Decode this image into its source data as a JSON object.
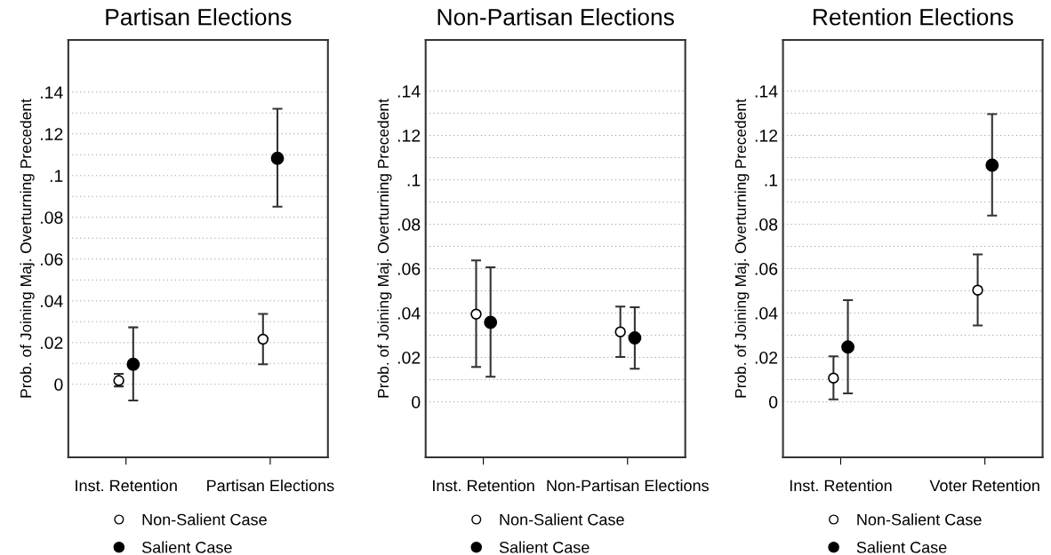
{
  "chart_data": [
    {
      "type": "scatter",
      "title": "Partisan Elections",
      "ylabel": "Prob. of Joining Maj. Overturning Precedent",
      "categories": [
        "Inst. Retention",
        "Partisan Elections"
      ],
      "ylim": [
        -0.035,
        0.165
      ],
      "yticks": [
        0,
        {
          "value": 0.01,
          "label": null
        },
        {
          "value": 0.02,
          "label": ".02"
        },
        {
          "value": 0.03,
          "label": null
        },
        {
          "value": 0.04,
          "label": ".04"
        },
        {
          "value": 0.05,
          "label": null
        },
        {
          "value": 0.06,
          "label": ".06"
        },
        {
          "value": 0.07,
          "label": null
        },
        {
          "value": 0.08,
          "label": ".08"
        },
        {
          "value": 0.09,
          "label": null
        },
        {
          "value": 0.1,
          "label": ".1"
        },
        {
          "value": 0.11,
          "label": null
        },
        {
          "value": 0.12,
          "label": ".12"
        },
        {
          "value": 0.13,
          "label": null
        },
        {
          "value": 0.14,
          "label": ".14"
        }
      ],
      "grid": "y",
      "legend": "bottom",
      "marker": "circle",
      "series": [
        {
          "name": "Non-Salient Case",
          "color": "#ffffff",
          "values": [
            0.0018,
            0.0216
          ],
          "errors": [
            [
              -0.001,
              0.005
            ],
            [
              0.0096,
              0.0337
            ]
          ]
        },
        {
          "name": "Salient Case",
          "color": "#000000",
          "values": [
            0.0096,
            0.1083
          ],
          "errors": [
            [
              -0.0078,
              0.0273
            ],
            [
              0.0851,
              0.132
            ]
          ]
        }
      ]
    },
    {
      "type": "scatter",
      "title": "Non-Partisan Elections",
      "ylabel": "Prob. of Joining Maj. Overturning Precedent",
      "categories": [
        "Inst. Retention",
        "Non-Partisan Elections"
      ],
      "ylim": [
        -0.025,
        0.163
      ],
      "yticks": [
        0,
        {
          "value": 0.01,
          "label": null
        },
        {
          "value": 0.02,
          "label": ".02"
        },
        {
          "value": 0.03,
          "label": null
        },
        {
          "value": 0.04,
          "label": ".04"
        },
        {
          "value": 0.05,
          "label": null
        },
        {
          "value": 0.06,
          "label": ".06"
        },
        {
          "value": 0.07,
          "label": null
        },
        {
          "value": 0.08,
          "label": ".08"
        },
        {
          "value": 0.09,
          "label": null
        },
        {
          "value": 0.1,
          "label": ".1"
        },
        {
          "value": 0.11,
          "label": null
        },
        {
          "value": 0.12,
          "label": ".12"
        },
        {
          "value": 0.13,
          "label": null
        },
        {
          "value": 0.14,
          "label": ".14"
        }
      ],
      "grid": "y",
      "legend": "bottom",
      "marker": "circle",
      "series": [
        {
          "name": "Non-Salient Case",
          "color": "#ffffff",
          "values": [
            0.0395,
            0.0315
          ],
          "errors": [
            [
              0.0157,
              0.0637
            ],
            [
              0.0202,
              0.0429
            ]
          ]
        },
        {
          "name": "Salient Case",
          "color": "#000000",
          "values": [
            0.0358,
            0.0288
          ],
          "errors": [
            [
              0.0113,
              0.0606
            ],
            [
              0.0149,
              0.0426
            ]
          ]
        }
      ]
    },
    {
      "type": "scatter",
      "title": "Retention Elections",
      "ylabel": "Prob. of Joining Maj. Overturning Precedent",
      "categories": [
        "Inst. Retention",
        "Voter Retention"
      ],
      "ylim": [
        -0.025,
        0.163
      ],
      "yticks": [
        0,
        {
          "value": 0.01,
          "label": null
        },
        {
          "value": 0.02,
          "label": ".02"
        },
        {
          "value": 0.03,
          "label": null
        },
        {
          "value": 0.04,
          "label": ".04"
        },
        {
          "value": 0.05,
          "label": null
        },
        {
          "value": 0.06,
          "label": ".06"
        },
        {
          "value": 0.07,
          "label": null
        },
        {
          "value": 0.08,
          "label": ".08"
        },
        {
          "value": 0.09,
          "label": null
        },
        {
          "value": 0.1,
          "label": ".1"
        },
        {
          "value": 0.11,
          "label": null
        },
        {
          "value": 0.12,
          "label": ".12"
        },
        {
          "value": 0.13,
          "label": null
        },
        {
          "value": 0.14,
          "label": ".14"
        }
      ],
      "grid": "y",
      "legend": "bottom",
      "marker": "circle",
      "series": [
        {
          "name": "Non-Salient Case",
          "color": "#ffffff",
          "values": [
            0.0107,
            0.0503
          ],
          "errors": [
            [
              0.0011,
              0.0205
            ],
            [
              0.0344,
              0.0664
            ]
          ]
        },
        {
          "name": "Salient Case",
          "color": "#000000",
          "values": [
            0.0247,
            0.1066
          ],
          "errors": [
            [
              0.0038,
              0.0458
            ],
            [
              0.0839,
              0.1296
            ]
          ]
        }
      ]
    }
  ]
}
